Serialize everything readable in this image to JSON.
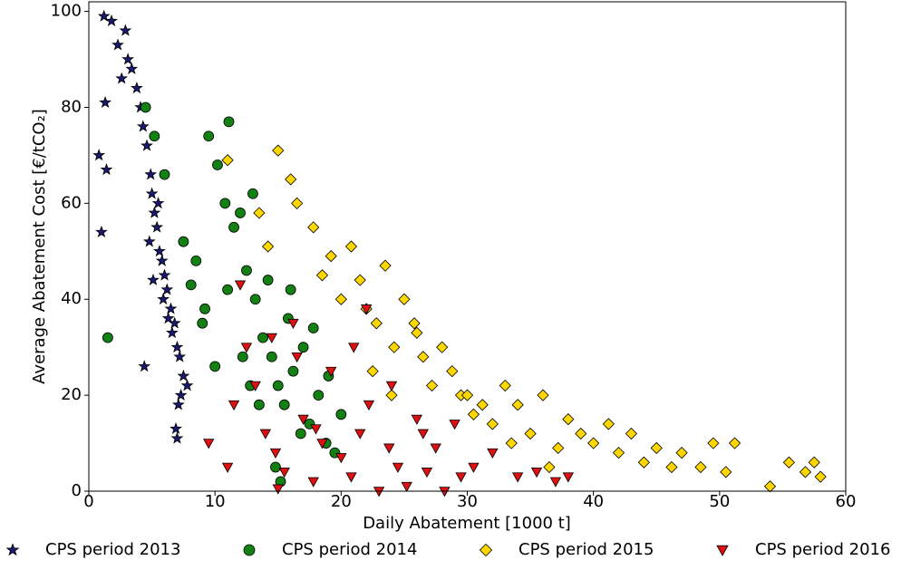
{
  "chart_data": {
    "type": "scatter",
    "x_label": "Daily Abatement [1000 t]",
    "y_label": "Average Abatement Cost [€/tCO₂]",
    "xlim": [
      0,
      60
    ],
    "ylim": [
      0,
      102
    ],
    "xticks": [
      0,
      10,
      20,
      30,
      40,
      50,
      60
    ],
    "yticks": [
      0,
      20,
      40,
      60,
      80,
      100
    ],
    "legend": "bottom",
    "series": [
      {
        "name": "CPS period 2013",
        "color": "#191970",
        "marker": "star",
        "x": [
          1.2,
          1.8,
          2.3,
          2.9,
          3.1,
          3.4,
          2.6,
          3.8,
          4.1,
          1.3,
          0.8,
          1.0,
          1.4,
          4.3,
          4.6,
          4.9,
          5.0,
          5.2,
          5.4,
          5.6,
          5.8,
          6.0,
          6.2,
          6.5,
          6.8,
          7.0,
          7.2,
          7.5,
          7.8,
          5.1,
          4.4,
          6.3,
          7.1,
          6.9,
          5.5,
          4.8,
          6.6,
          7.3,
          7.0,
          5.9
        ],
        "values": [
          99,
          98,
          93,
          96,
          90,
          88,
          86,
          84,
          80,
          81,
          70,
          54,
          67,
          76,
          72,
          66,
          62,
          58,
          55,
          50,
          48,
          45,
          42,
          38,
          35,
          30,
          28,
          24,
          22,
          44,
          26,
          36,
          18,
          13,
          60,
          52,
          33,
          20,
          11,
          40
        ]
      },
      {
        "name": "CPS period 2014",
        "color": "#138013",
        "marker": "circle",
        "x": [
          1.5,
          4.5,
          5.2,
          6.0,
          7.5,
          8.1,
          9.5,
          10.2,
          11.1,
          12.0,
          10.8,
          9.0,
          8.5,
          11.5,
          12.5,
          13.2,
          13.8,
          14.5,
          15.0,
          15.5,
          16.2,
          17.0,
          17.5,
          18.2,
          18.8,
          19.5,
          20.0,
          13.0,
          14.2,
          15.8,
          16.8,
          12.2,
          11.0,
          10.0,
          9.2,
          17.8,
          19.0,
          14.8,
          15.2,
          16.0,
          13.5,
          12.8
        ],
        "values": [
          32,
          80,
          74,
          66,
          52,
          43,
          74,
          68,
          77,
          58,
          60,
          35,
          48,
          55,
          46,
          40,
          32,
          28,
          22,
          18,
          25,
          30,
          14,
          20,
          10,
          8,
          16,
          62,
          44,
          36,
          12,
          28,
          42,
          26,
          38,
          34,
          24,
          5,
          2,
          42,
          18,
          22
        ]
      },
      {
        "name": "CPS period 2015",
        "color": "#ffd700",
        "marker": "diamond",
        "x": [
          11.0,
          13.5,
          14.2,
          15.0,
          16.0,
          16.5,
          17.8,
          18.5,
          19.2,
          20.0,
          20.8,
          21.5,
          22.0,
          22.8,
          23.5,
          24.2,
          25.0,
          25.8,
          26.5,
          27.2,
          28.0,
          28.8,
          29.5,
          30.5,
          31.2,
          32.0,
          33.0,
          34.0,
          35.0,
          36.0,
          37.2,
          38.0,
          39.0,
          40.0,
          41.2,
          42.0,
          43.0,
          44.0,
          45.0,
          46.2,
          47.0,
          48.5,
          49.5,
          50.5,
          51.2,
          54.0,
          55.5,
          56.8,
          57.5,
          58.0,
          22.5,
          24.0,
          26.0,
          30.0,
          33.5,
          36.5
        ],
        "values": [
          69,
          58,
          51,
          71,
          65,
          60,
          55,
          45,
          49,
          40,
          51,
          44,
          38,
          35,
          47,
          30,
          40,
          35,
          28,
          22,
          30,
          25,
          20,
          16,
          18,
          14,
          22,
          18,
          12,
          20,
          9,
          15,
          12,
          10,
          14,
          8,
          12,
          6,
          9,
          5,
          8,
          5,
          10,
          4,
          10,
          1,
          6,
          4,
          6,
          3,
          25,
          20,
          33,
          20,
          10,
          5
        ]
      },
      {
        "name": "CPS period 2016",
        "color": "#dd1111",
        "marker": "triangle-down",
        "x": [
          9.5,
          11.0,
          12.0,
          12.5,
          13.2,
          14.0,
          14.8,
          15.5,
          16.2,
          17.0,
          17.8,
          18.5,
          19.2,
          20.0,
          20.8,
          21.5,
          22.2,
          23.0,
          23.8,
          24.5,
          25.2,
          26.0,
          26.8,
          27.5,
          28.2,
          29.0,
          29.5,
          30.5,
          32.0,
          34.0,
          35.5,
          37.0,
          38.0,
          11.5,
          14.5,
          16.5,
          18.0,
          21.0,
          22.0,
          24.0,
          26.5,
          15.0
        ],
        "values": [
          10,
          5,
          43,
          30,
          22,
          12,
          8,
          4,
          35,
          15,
          2,
          10,
          25,
          7,
          3,
          12,
          18,
          0,
          9,
          5,
          1,
          15,
          4,
          9,
          0,
          14,
          3,
          5,
          8,
          3,
          4,
          2,
          3,
          18,
          32,
          28,
          13,
          30,
          38,
          22,
          12,
          0.5
        ]
      }
    ]
  }
}
